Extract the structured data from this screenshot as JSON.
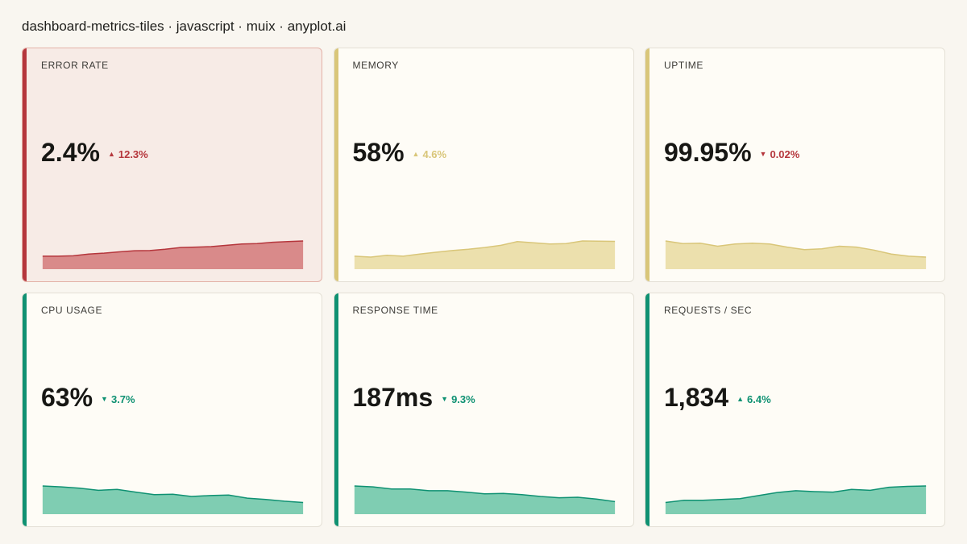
{
  "header": {
    "title": "dashboard-metrics-tiles · javascript · muix · anyplot.ai"
  },
  "colors": {
    "red": "#b5363c",
    "yellow": "#d9c679",
    "green": "#0f9172"
  },
  "tiles": [
    {
      "label": "ERROR RATE",
      "value": "2.4%",
      "delta": "12.3%",
      "direction": "up",
      "status": "red",
      "alert": true,
      "spark": [
        0.3,
        0.3,
        0.32,
        0.4,
        0.44,
        0.5,
        0.55,
        0.56,
        0.62,
        0.7,
        0.72,
        0.74,
        0.8,
        0.86,
        0.88,
        0.94,
        0.97,
        1.0
      ]
    },
    {
      "label": "MEMORY",
      "value": "58%",
      "delta": "4.6%",
      "direction": "up",
      "status": "yellow",
      "alert": false,
      "spark": [
        0.3,
        0.26,
        0.34,
        0.3,
        0.4,
        0.48,
        0.56,
        0.62,
        0.7,
        0.8,
        0.97,
        0.92,
        0.86,
        0.88,
        1.0,
        0.99,
        0.98
      ]
    },
    {
      "label": "UPTIME",
      "value": "99.95%",
      "delta": "0.02%",
      "direction": "down",
      "status": "red",
      "alert": false,
      "accent": "yellow",
      "spark": [
        1.0,
        0.88,
        0.9,
        0.76,
        0.86,
        0.9,
        0.86,
        0.72,
        0.6,
        0.64,
        0.76,
        0.72,
        0.58,
        0.4,
        0.3,
        0.26
      ]
    },
    {
      "label": "CPU USAGE",
      "value": "63%",
      "delta": "3.7%",
      "direction": "down",
      "status": "green",
      "alert": false,
      "spark": [
        1.0,
        0.96,
        0.9,
        0.8,
        0.84,
        0.72,
        0.6,
        0.62,
        0.52,
        0.56,
        0.58,
        0.44,
        0.38,
        0.3,
        0.24
      ]
    },
    {
      "label": "RESPONSE TIME",
      "value": "187ms",
      "delta": "9.3%",
      "direction": "down",
      "status": "green",
      "alert": false,
      "spark": [
        1.0,
        0.96,
        0.86,
        0.86,
        0.78,
        0.78,
        0.72,
        0.64,
        0.66,
        0.6,
        0.52,
        0.46,
        0.48,
        0.4,
        0.28
      ]
    },
    {
      "label": "REQUESTS / SEC",
      "value": "1,834",
      "delta": "6.4%",
      "direction": "up",
      "status": "green",
      "alert": false,
      "spark": [
        0.24,
        0.34,
        0.34,
        0.38,
        0.42,
        0.56,
        0.7,
        0.78,
        0.74,
        0.72,
        0.84,
        0.8,
        0.94,
        0.98,
        1.0
      ]
    }
  ]
}
